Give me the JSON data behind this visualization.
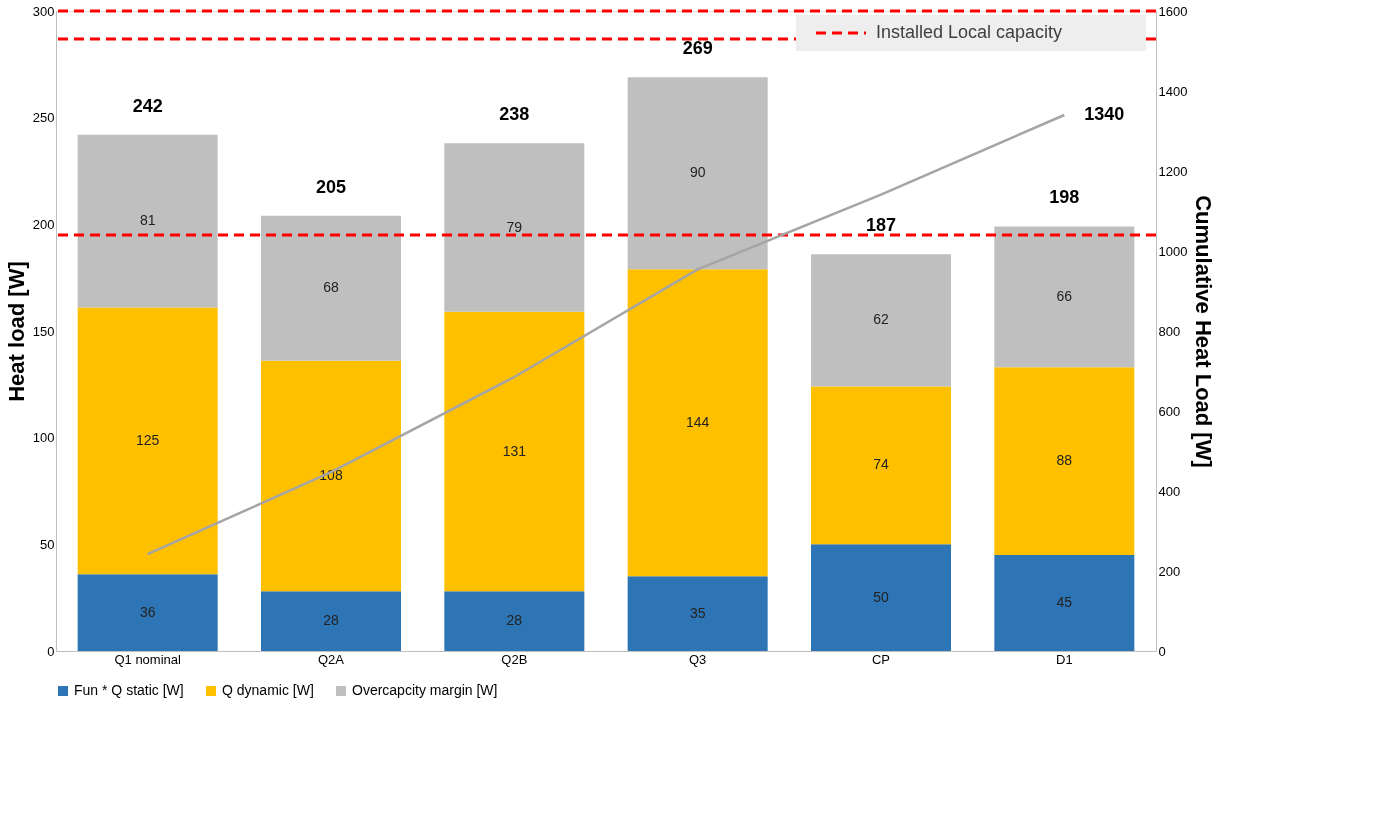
{
  "chart_data": {
    "type": "bar",
    "stacked": true,
    "categories": [
      "Q1 nominal",
      "Q2A",
      "Q2B",
      "Q3",
      "CP",
      "D1"
    ],
    "series": [
      {
        "name": "Fun * Q static [W]",
        "color": "#2e75b6",
        "values": [
          36,
          28,
          28,
          35,
          50,
          45
        ]
      },
      {
        "name": "Q dynamic [W]",
        "color": "#ffc000",
        "values": [
          125,
          108,
          131,
          144,
          74,
          88
        ]
      },
      {
        "name": "Overcapcity margin [W]",
        "color": "#bfbfbf",
        "values": [
          81,
          68,
          79,
          90,
          62,
          66
        ]
      },
      {
        "type": "line",
        "axis": "y2",
        "color": "#a5a5a5",
        "values": [
          242,
          447,
          685,
          954,
          1141,
          1340
        ],
        "value_labels": [
          null,
          null,
          null,
          null,
          null,
          "1340"
        ]
      }
    ],
    "data_labels": true,
    "totals": [
      "242",
      "205",
      "238",
      "269",
      "187",
      "198"
    ],
    "ylabel": "Heat load [W]",
    "y2label": "Cumulative Heat Load [W]",
    "ylim": [
      0,
      300
    ],
    "yticks": [
      0,
      50,
      100,
      150,
      200,
      250,
      300
    ],
    "y2lim": [
      0,
      1600
    ],
    "y2ticks": [
      0,
      200,
      400,
      600,
      800,
      1000,
      1200,
      1400,
      1600
    ],
    "ref_lines": [
      {
        "axis": "y",
        "value": 300,
        "label": "Installed Local capacity",
        "color": "#ff0000",
        "line_style": "dashed"
      },
      {
        "axis": "y",
        "value": 195,
        "color": "#ff0000",
        "line_style": "dashed"
      },
      {
        "axis": "y2",
        "value": 1530,
        "color": "#ff0000",
        "line_style": "dashed"
      }
    ],
    "grid": false,
    "legend": "bottom",
    "marker": "none",
    "line_style": "solid"
  }
}
